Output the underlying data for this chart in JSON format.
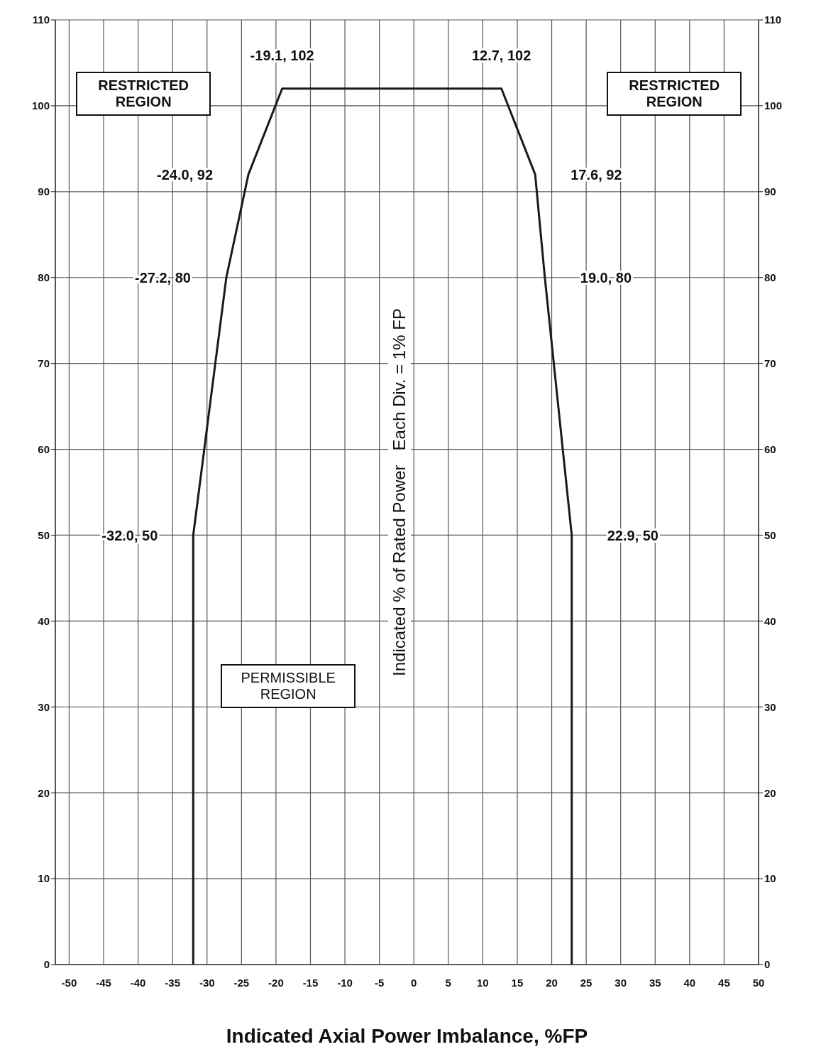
{
  "chart_data": {
    "type": "line",
    "xlabel": "Indicated Axial Power Imbalance, %FP",
    "ylabel": "Indicated % of Rated Power   Each Div. = 1% FP",
    "x": [
      -32.0,
      -32.0,
      -27.2,
      -24.0,
      -19.1,
      12.7,
      17.6,
      19.0,
      22.9,
      22.9
    ],
    "series": [
      {
        "color": "#1a1a1a",
        "values": [
          0,
          50,
          80,
          92,
          102,
          102,
          92,
          80,
          50,
          0
        ]
      }
    ],
    "xlim": [
      -52,
      50
    ],
    "xticks": [
      -50,
      -45,
      -40,
      -35,
      -30,
      -25,
      -20,
      -15,
      -10,
      -5,
      0,
      5,
      10,
      15,
      20,
      25,
      30,
      35,
      40,
      45,
      50
    ],
    "ylim": [
      0,
      110
    ],
    "yticks": [
      0,
      10,
      20,
      30,
      40,
      50,
      60,
      70,
      80,
      90,
      100,
      110
    ],
    "y2lim": [
      0,
      110
    ],
    "y2ticks": [
      0,
      10,
      20,
      30,
      40,
      50,
      60,
      70,
      80,
      90,
      100,
      110
    ],
    "grid": true,
    "annotations": [
      "RESTRICTED REGION",
      "RESTRICTED REGION",
      "PERMISSIBLE REGION",
      {
        "text": "-32.0, 50",
        "x": -32.0,
        "y": 50
      },
      {
        "text": "-27.2, 80",
        "x": -27.2,
        "y": 80
      },
      {
        "text": "-24.0, 92",
        "x": -24.0,
        "y": 92
      },
      {
        "text": "-19.1, 102",
        "x": -19.1,
        "y": 102
      },
      {
        "text": "12.7, 102",
        "x": 12.7,
        "y": 102
      },
      {
        "text": "17.6, 92",
        "x": 17.6,
        "y": 92
      },
      {
        "text": "19.0, 80",
        "x": 19.0,
        "y": 80
      },
      {
        "text": "22.9, 50",
        "x": 22.9,
        "y": 50
      }
    ]
  }
}
